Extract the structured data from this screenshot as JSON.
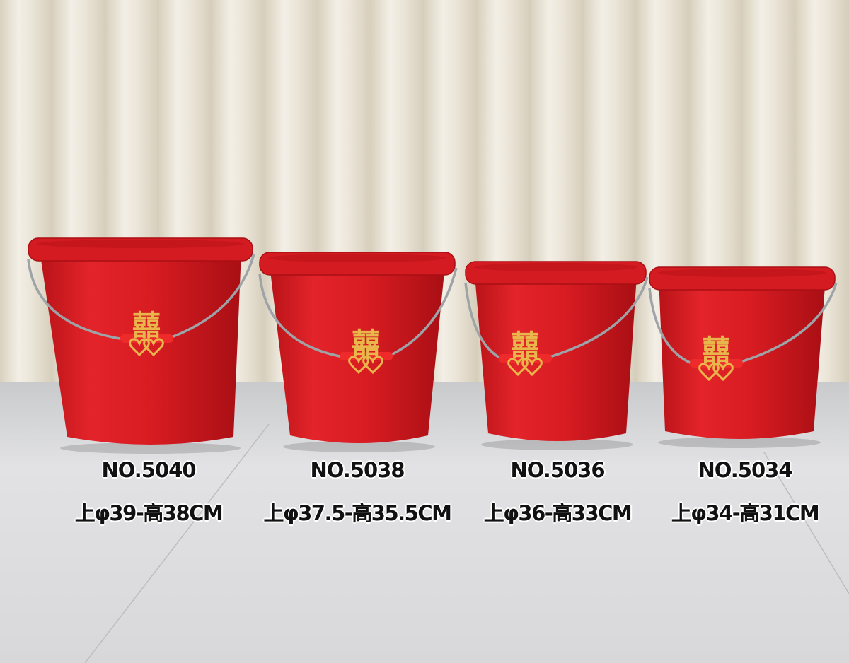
{
  "products": [
    {
      "model": "NO.5040",
      "size": "上φ39-高38CM"
    },
    {
      "model": "NO.5038",
      "size": "上φ37.5-高35.5CM"
    },
    {
      "model": "NO.5036",
      "size": "上φ36-高33CM"
    },
    {
      "model": "NO.5034",
      "size": "上φ34-高31CM"
    }
  ],
  "colors": {
    "bucket": "#d91a1f",
    "curtain": "#e9e3d6",
    "floor": "#dcdcde",
    "emblem": "#e8b64a"
  },
  "emblem_icon": "double-happiness-icon"
}
